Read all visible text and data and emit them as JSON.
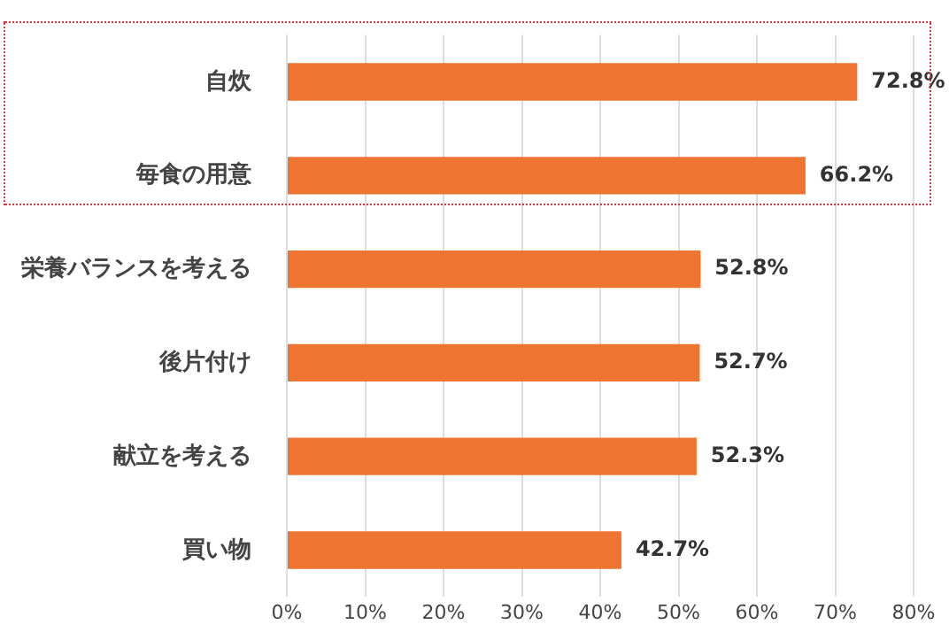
{
  "chart_data": {
    "type": "bar",
    "orientation": "horizontal",
    "categories": [
      "自炊",
      "毎食の用意",
      "栄養バランスを考える",
      "後片付け",
      "献立を考える",
      "買い物"
    ],
    "values": [
      72.8,
      66.2,
      52.8,
      52.7,
      52.3,
      42.7
    ],
    "value_labels": [
      "72.8%",
      "66.2%",
      "52.8%",
      "52.7%",
      "52.3%",
      "42.7%"
    ],
    "color": "#ed7431",
    "xlim": [
      0,
      80
    ],
    "xticks": [
      {
        "value": 0,
        "label": "0%"
      },
      {
        "value": 10,
        "label": "10%"
      },
      {
        "value": 20,
        "label": "20%"
      },
      {
        "value": 30,
        "label": "30%"
      },
      {
        "value": 40,
        "label": "40%"
      },
      {
        "value": 50,
        "label": "50%"
      },
      {
        "value": 60,
        "label": "60%"
      },
      {
        "value": 70,
        "label": "70%"
      },
      {
        "value": 80,
        "label": "80%"
      }
    ],
    "grid": "x",
    "legend": false
  }
}
